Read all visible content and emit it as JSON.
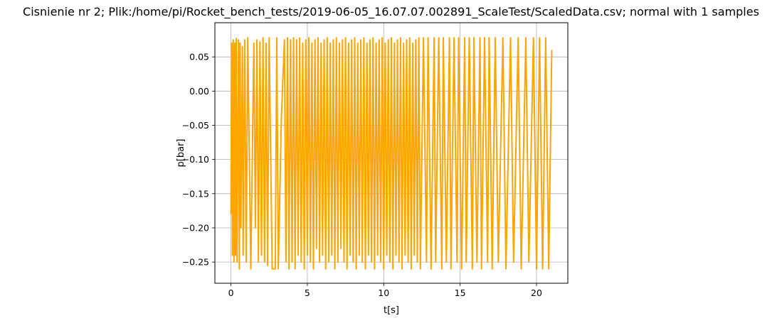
{
  "chart_data": {
    "type": "line",
    "title": "Cisnienie nr 2; Plik:/home/pi/Rocket_bench_tests/2019-06-05_16.07.07.002891_ScaleTest/ScaledData.csv; normal with 1 samples",
    "xlabel": "t[s]",
    "ylabel": "p[bar]",
    "xlim": [
      -1.05,
      22.05
    ],
    "ylim": [
      -0.281,
      0.1
    ],
    "xticks": [
      0,
      5,
      10,
      15,
      20
    ],
    "xtick_labels": [
      "0",
      "5",
      "10",
      "15",
      "20"
    ],
    "yticks": [
      0.05,
      0.0,
      -0.05,
      -0.1,
      -0.15,
      -0.2,
      -0.25
    ],
    "ytick_labels": [
      "0.05",
      "0.00",
      "−0.05",
      "−0.10",
      "−0.15",
      "−0.20",
      "−0.25"
    ],
    "grid": true,
    "colors": {
      "series": "#ffa500",
      "grid": "#b0b0b0",
      "axis": "#000000"
    },
    "series": [
      {
        "color": "#ffa500",
        "x": [
          0.0,
          0.05,
          0.1,
          0.15,
          0.2,
          0.25,
          0.3,
          0.35,
          0.4,
          0.5,
          0.55,
          0.6,
          0.65,
          0.75,
          0.8,
          0.9,
          1.0,
          1.1,
          1.3,
          1.5,
          1.6,
          1.7,
          1.8,
          1.9,
          2.0,
          2.1,
          2.2,
          2.3,
          2.4,
          2.5,
          2.7,
          2.9,
          3.0,
          3.1,
          3.3,
          3.5,
          3.6,
          3.7,
          3.8,
          3.9,
          4.0,
          4.1,
          4.2,
          4.3,
          4.4,
          4.5,
          4.6,
          4.7,
          4.8,
          4.9,
          5.0,
          5.1,
          5.2,
          5.3,
          5.4,
          5.5,
          5.6,
          5.7,
          5.8,
          5.9,
          6.0,
          6.1,
          6.2,
          6.3,
          6.4,
          6.5,
          6.6,
          6.7,
          6.8,
          6.9,
          7.0,
          7.1,
          7.2,
          7.3,
          7.4,
          7.5,
          7.6,
          7.7,
          7.8,
          7.9,
          8.0,
          8.1,
          8.2,
          8.3,
          8.4,
          8.5,
          8.6,
          8.7,
          8.8,
          8.9,
          9.0,
          9.1,
          9.2,
          9.3,
          9.4,
          9.5,
          9.6,
          9.7,
          9.8,
          9.9,
          10.0,
          10.1,
          10.2,
          10.3,
          10.4,
          10.5,
          10.6,
          10.7,
          10.8,
          10.9,
          11.0,
          11.1,
          11.2,
          11.3,
          11.4,
          11.5,
          11.6,
          11.7,
          11.8,
          11.9,
          12.0,
          12.1,
          12.2,
          12.3,
          12.4,
          12.6,
          12.8,
          12.9,
          13.1,
          13.3,
          13.4,
          13.6,
          13.8,
          13.9,
          14.1,
          14.3,
          14.4,
          14.6,
          14.8,
          14.9,
          15.1,
          15.3,
          15.4,
          15.6,
          15.8,
          15.9,
          16.1,
          16.3,
          16.4,
          16.6,
          16.8,
          16.9,
          17.1,
          17.3,
          17.5,
          17.8,
          18.0,
          18.3,
          18.5,
          18.8,
          19.0,
          19.3,
          19.5,
          19.8,
          20.0,
          20.2,
          20.4,
          20.6,
          20.8,
          21.0
        ],
        "y": [
          -0.18,
          0.07,
          -0.24,
          0.075,
          -0.25,
          0.07,
          -0.24,
          0.077,
          -0.25,
          0.075,
          -0.26,
          0.07,
          -0.2,
          0.065,
          -0.24,
          0.075,
          -0.25,
          0.078,
          -0.26,
          0.07,
          -0.2,
          0.075,
          -0.25,
          0.072,
          -0.24,
          0.078,
          -0.25,
          0.07,
          -0.255,
          0.078,
          -0.26,
          -0.26,
          0.078,
          -0.26,
          -0.04,
          0.075,
          -0.25,
          0.078,
          -0.26,
          0.075,
          -0.25,
          0.078,
          -0.26,
          0.075,
          -0.24,
          0.078,
          -0.25,
          0.07,
          -0.26,
          0.075,
          -0.24,
          0.078,
          -0.25,
          0.07,
          -0.26,
          0.075,
          -0.23,
          0.078,
          -0.25,
          0.07,
          -0.24,
          0.075,
          -0.26,
          0.078,
          -0.25,
          0.07,
          -0.24,
          0.075,
          -0.26,
          0.078,
          -0.25,
          0.07,
          -0.23,
          0.075,
          -0.25,
          0.078,
          -0.26,
          0.07,
          -0.24,
          0.075,
          -0.25,
          0.078,
          -0.26,
          0.07,
          -0.24,
          0.075,
          -0.25,
          0.078,
          -0.26,
          0.07,
          -0.24,
          0.075,
          -0.25,
          0.078,
          -0.26,
          0.07,
          -0.24,
          0.075,
          -0.25,
          0.078,
          -0.26,
          0.07,
          -0.24,
          0.075,
          -0.25,
          0.078,
          -0.26,
          0.07,
          -0.24,
          0.075,
          -0.25,
          0.078,
          -0.26,
          0.07,
          -0.24,
          0.075,
          -0.25,
          0.078,
          -0.26,
          0.07,
          -0.24,
          0.075,
          -0.25,
          0.078,
          -0.26,
          0.078,
          -0.25,
          0.078,
          -0.26,
          0.078,
          -0.25,
          0.078,
          -0.26,
          0.078,
          -0.25,
          0.078,
          -0.26,
          0.078,
          -0.25,
          0.078,
          -0.26,
          0.078,
          -0.25,
          0.078,
          -0.26,
          0.078,
          -0.25,
          0.078,
          -0.26,
          0.078,
          -0.25,
          0.078,
          -0.26,
          0.078,
          -0.25,
          0.078,
          -0.26,
          0.078,
          -0.25,
          0.078,
          -0.26,
          0.078,
          -0.25,
          0.078,
          -0.26,
          0.078,
          -0.26,
          0.078,
          -0.26,
          0.06
        ]
      }
    ]
  }
}
